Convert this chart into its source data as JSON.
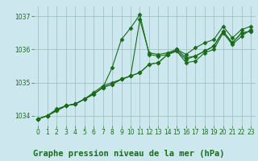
{
  "bg_color": "#cce8ee",
  "grid_color": "#99bbbb",
  "line_color": "#1a6b1a",
  "title": "Graphe pression niveau de la mer (hPa)",
  "xlim": [
    -0.5,
    23.5
  ],
  "ylim": [
    1033.7,
    1037.3
  ],
  "yticks": [
    1034,
    1035,
    1036,
    1037
  ],
  "xticks": [
    0,
    1,
    2,
    3,
    4,
    5,
    6,
    7,
    8,
    9,
    10,
    11,
    12,
    13,
    14,
    15,
    16,
    17,
    18,
    19,
    20,
    21,
    22,
    23
  ],
  "series": [
    [
      1033.9,
      1034.0,
      1034.2,
      1034.3,
      1034.35,
      1034.5,
      1034.7,
      1034.9,
      1035.0,
      1035.1,
      1035.2,
      1036.9,
      1035.9,
      1035.85,
      1035.9,
      1036.0,
      1035.75,
      1035.8,
      1035.95,
      1036.1,
      1036.55,
      1036.2,
      1036.5,
      1036.55
    ],
    [
      1033.9,
      1034.0,
      1034.15,
      1034.3,
      1034.35,
      1034.5,
      1034.65,
      1034.85,
      1035.45,
      1036.3,
      1036.65,
      1037.05,
      1035.85,
      1035.8,
      1035.85,
      1035.95,
      1035.6,
      1035.65,
      1035.9,
      1036.0,
      1036.5,
      1036.15,
      1036.4,
      1036.6
    ],
    [
      1033.9,
      1034.0,
      1034.15,
      1034.3,
      1034.35,
      1034.5,
      1034.65,
      1034.85,
      1034.95,
      1035.1,
      1035.2,
      1035.3,
      1035.55,
      1035.6,
      1035.85,
      1035.95,
      1035.7,
      1035.8,
      1035.95,
      1036.1,
      1036.55,
      1036.2,
      1036.5,
      1036.55
    ],
    [
      1033.9,
      1034.0,
      1034.15,
      1034.3,
      1034.35,
      1034.5,
      1034.65,
      1034.85,
      1034.95,
      1035.1,
      1035.2,
      1035.3,
      1035.55,
      1035.6,
      1035.85,
      1036.0,
      1035.85,
      1036.05,
      1036.2,
      1036.3,
      1036.7,
      1036.35,
      1036.6,
      1036.7
    ]
  ],
  "marker": "D",
  "markersize": 2.5,
  "linewidth": 0.8,
  "title_fontsize": 7.5,
  "tick_fontsize": 5.5,
  "title_color": "#1a6b1a",
  "tick_color": "#1a6b1a"
}
